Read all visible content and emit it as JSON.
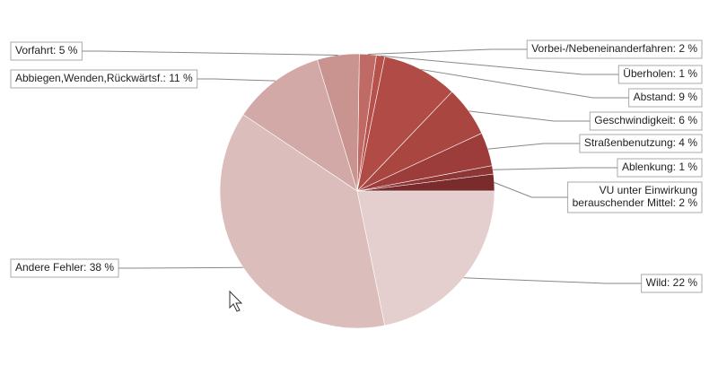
{
  "chart_data": {
    "type": "pie",
    "values": [
      2,
      1,
      4,
      6,
      9,
      1,
      2,
      5,
      11,
      38,
      22
    ],
    "value_labels": [
      "VU unter Einwirkung\nberauschender Mittel: 2 %",
      "Ablenkung: 1 %",
      "Straßenbenutzung: 4 %",
      "Geschwindigkeit: 6 %",
      "Abstand: 9 %",
      "Überholen: 1 %",
      "Vorbei-/Nebeneinanderfahren: 2 %",
      "Vorfahrt: 5 %",
      "Abbiegen,Wenden,Rückwärtsf.: 11 %",
      "Andere Fehler: 38 %",
      "Wild: 22 %"
    ],
    "colors": [
      "#7a2b2b",
      "#8e3535",
      "#9c3d3b",
      "#a8463f",
      "#b04c45",
      "#b8514b",
      "#c06a66",
      "#c99390",
      "#d2a9a7",
      "#dbbdbb",
      "#e4cfce"
    ]
  }
}
